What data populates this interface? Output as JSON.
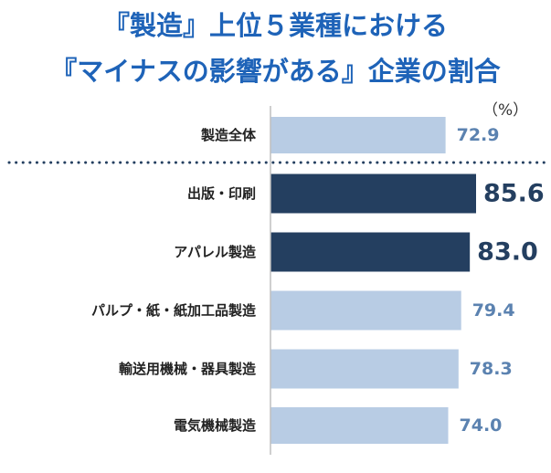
{
  "header": {
    "title_line1": "『製造』上位５業種における",
    "title_line2": "『マイナスの影響がある』企業の割合",
    "unit": "（%）"
  },
  "chart_data": {
    "type": "bar",
    "orientation": "horizontal",
    "title": "『製造』上位５業種における『マイナスの影響がある』企業の割合",
    "unit": "（%）",
    "categories": [
      "製造全体",
      "出版・印刷",
      "アパレル製造",
      "パルプ・紙・紙加工品製造",
      "輸送用機械・器具製造",
      "電気機械製造"
    ],
    "values": [
      72.9,
      85.6,
      83.0,
      79.4,
      78.3,
      74.0
    ],
    "value_labels": [
      "72.9",
      "85.6",
      "83.0",
      "79.4",
      "78.3",
      "74.0"
    ],
    "highlighted": [
      false,
      true,
      true,
      false,
      false,
      false
    ],
    "colors": {
      "normal_bar": "#b8cce4",
      "highlight_bar": "#243f60",
      "normal_label": "#5b82b0",
      "highlight_label": "#243f60",
      "category_text": "#222222",
      "axis": "#bfbfbf",
      "separator": "#243f60"
    },
    "separator_after_index": 0
  }
}
